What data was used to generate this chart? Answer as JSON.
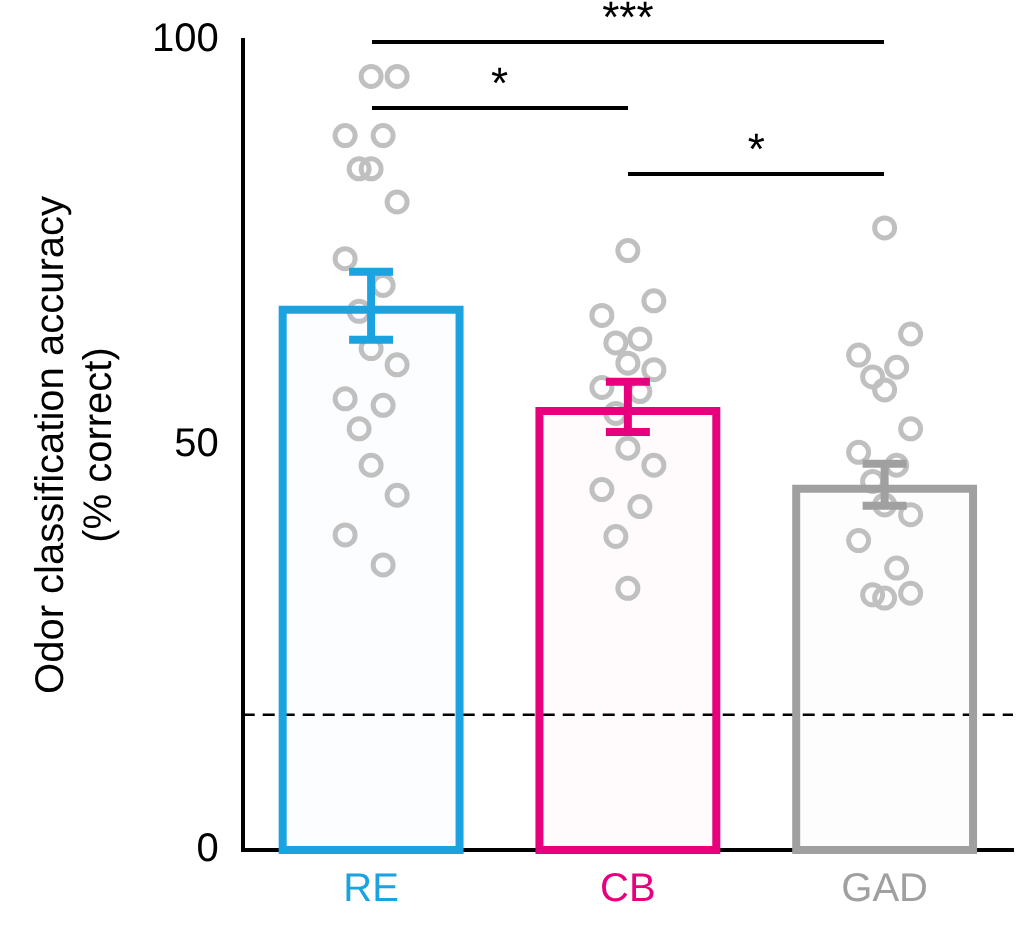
{
  "chart_data": {
    "type": "bar",
    "ylabel": "Odor classification accuracy\n(% correct)",
    "categories": [
      "RE",
      "CB",
      "GAD"
    ],
    "ylim": [
      0,
      100
    ],
    "yticks": [
      0,
      50,
      100
    ],
    "grid": false,
    "legend": false,
    "series": [
      {
        "type": "bar",
        "colors": [
          "#1aa3e0",
          "#e6007e",
          "#a0a0a0"
        ],
        "values": [
          67.2,
          54.7,
          45.1
        ],
        "errors": [
          4.2,
          3.1,
          2.6
        ]
      },
      {
        "type": "scatter",
        "color": "#c0c0c0",
        "marker": "circle",
        "x": [
          "RE",
          "RE",
          "RE",
          "RE",
          "RE",
          "RE",
          "RE",
          "RE",
          "RE",
          "RE",
          "RE",
          "RE",
          "RE",
          "RE",
          "RE",
          "RE",
          "RE",
          "RE",
          "RE",
          "CB",
          "CB",
          "CB",
          "CB",
          "CB",
          "CB",
          "CB",
          "CB",
          "CB",
          "CB",
          "CB",
          "CB",
          "CB",
          "CB",
          "CB",
          "CB",
          "GAD",
          "GAD",
          "GAD",
          "GAD",
          "GAD",
          "GAD",
          "GAD",
          "GAD",
          "GAD",
          "GAD",
          "GAD",
          "GAD",
          "GAD",
          "GAD",
          "GAD",
          "GAD",
          "GAD"
        ],
        "values": [
          95.5,
          95.5,
          88.2,
          88.2,
          84.1,
          84.1,
          80.0,
          73.0,
          69.7,
          66.5,
          61.9,
          59.9,
          55.7,
          54.9,
          52.0,
          47.5,
          43.8,
          38.9,
          35.2,
          74.0,
          67.8,
          66.0,
          63.1,
          62.6,
          60.1,
          59.3,
          57.1,
          56.6,
          53.9,
          49.6,
          47.5,
          44.5,
          42.4,
          38.7,
          32.3,
          76.8,
          63.7,
          61.1,
          59.6,
          58.4,
          56.8,
          52.0,
          49.1,
          47.5,
          45.5,
          42.6,
          41.4,
          38.2,
          34.8,
          31.5,
          31.1,
          31.7
        ]
      }
    ],
    "ref_lines": [
      {
        "axis": "y",
        "value": 16.7,
        "line_style": "dashed",
        "color": "#000000"
      }
    ],
    "annotations": [
      "***",
      "*",
      "*"
    ]
  }
}
